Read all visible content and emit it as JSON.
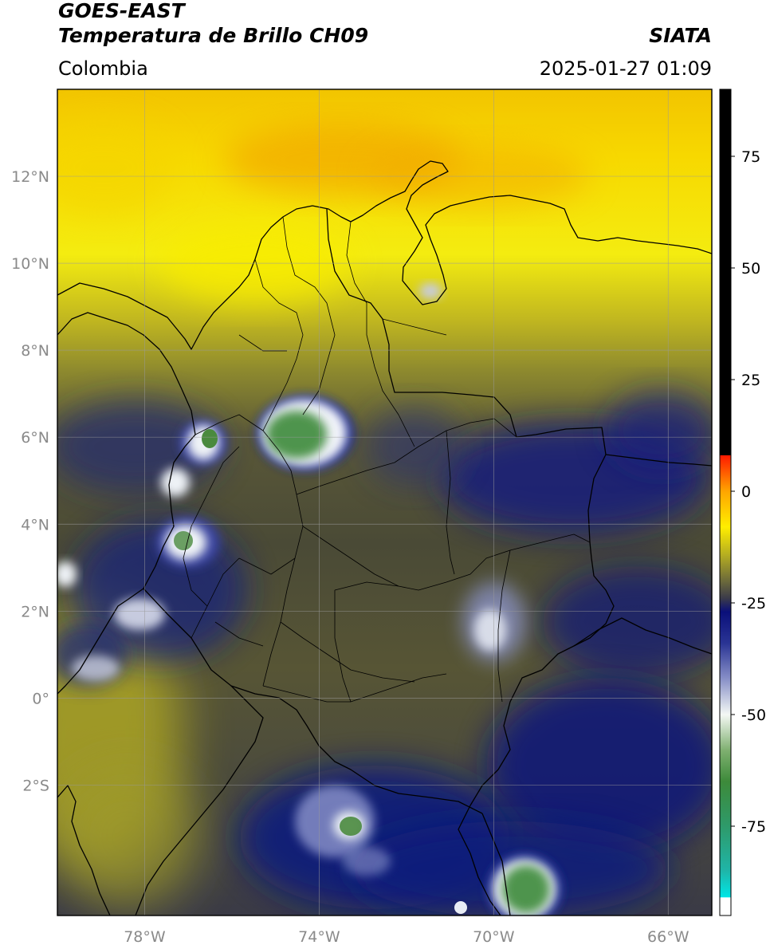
{
  "header": {
    "line1": "GOES-EAST",
    "line2": "Temperatura de Brillo CH09",
    "brand": "SIATA",
    "region": "Colombia",
    "timestamp": "2025-01-27 01:09"
  },
  "map": {
    "lon_range": [
      -80.0,
      -65.0
    ],
    "lat_range": [
      -5.0,
      14.0
    ],
    "gridlines": true,
    "lat_ticks": [
      {
        "value": 12,
        "label": "12°N"
      },
      {
        "value": 10,
        "label": "10°N"
      },
      {
        "value": 8,
        "label": "8°N"
      },
      {
        "value": 6,
        "label": "6°N"
      },
      {
        "value": 4,
        "label": "4°N"
      },
      {
        "value": 2,
        "label": "2°N"
      },
      {
        "value": 0,
        "label": "0°"
      },
      {
        "value": -2,
        "label": "2°S"
      }
    ],
    "lon_ticks": [
      {
        "value": -78,
        "label": "78°W"
      },
      {
        "value": -74,
        "label": "74°W"
      },
      {
        "value": -70,
        "label": "70°W"
      },
      {
        "value": -66,
        "label": "66°W"
      }
    ],
    "colors": {
      "ocean_north": "#f2c500",
      "warm_orange": "#f09a00",
      "yellow": "#f7e600",
      "olive": "#8c8a30",
      "dark_olive": "#4a4a38",
      "navy": "#101a7a",
      "cloud_white": "#e8ecf4",
      "cloud_green": "#3d8a3a",
      "border": "#000000"
    }
  },
  "colorbar": {
    "min": -95,
    "max": 90,
    "labels": [
      {
        "value": 75,
        "label": "75"
      },
      {
        "value": 50,
        "label": "50"
      },
      {
        "value": 25,
        "label": "25"
      },
      {
        "value": 0,
        "label": "0"
      },
      {
        "value": -25,
        "label": "-25"
      },
      {
        "value": -50,
        "label": "-50"
      },
      {
        "value": -75,
        "label": "-75"
      }
    ],
    "stops": [
      {
        "value": -95,
        "color": "#ffffff"
      },
      {
        "value": -91,
        "color": "#ffffff"
      },
      {
        "value": -90.9,
        "color": "#00e6e6"
      },
      {
        "value": -85,
        "color": "#1fb5a8"
      },
      {
        "value": -75,
        "color": "#2e9a6a"
      },
      {
        "value": -65,
        "color": "#3d8a3a"
      },
      {
        "value": -58,
        "color": "#7fb070"
      },
      {
        "value": -50,
        "color": "#f4f8f4"
      },
      {
        "value": -42,
        "color": "#8890c8"
      },
      {
        "value": -34,
        "color": "#2a3494"
      },
      {
        "value": -27,
        "color": "#0a0f7a"
      },
      {
        "value": -24,
        "color": "#3a3a4a"
      },
      {
        "value": -20,
        "color": "#6d6b3a"
      },
      {
        "value": -14,
        "color": "#b8b020"
      },
      {
        "value": -8,
        "color": "#ffee00"
      },
      {
        "value": 0,
        "color": "#ffa500"
      },
      {
        "value": 8,
        "color": "#ff1a00"
      },
      {
        "value": 8.1,
        "color": "#000000"
      },
      {
        "value": 90,
        "color": "#000000"
      }
    ]
  }
}
